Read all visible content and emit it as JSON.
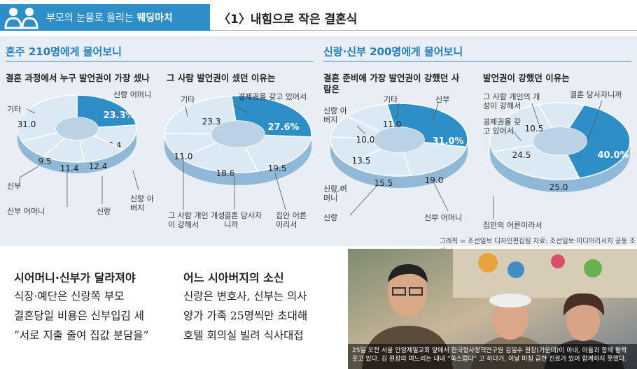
{
  "header": {
    "series": "부모의 눈물로 울리는",
    "series_bold": "웨딩마치",
    "title": "〈1〉내힘으로 작은 결혼식",
    "accent": "#2e8fc8"
  },
  "left_section": {
    "title": "혼주 210명에게 물어보니",
    "chart1": {
      "question": "결혼 과정에서 누구 발언권이 가장 셌나",
      "labels": [
        "신랑 어머니",
        "기타",
        "신부",
        "신부 어머니",
        "신랑",
        "신랑 아버지"
      ]
    },
    "chart2": {
      "question": "그 사람 발언권이 셌던 이유는",
      "labels": [
        "기타",
        "경제권을 갖고 있어서",
        "그 사람 개인 개성이 강해서",
        "결혼 당사자니까",
        "집안 어른 이리서"
      ]
    }
  },
  "right_section": {
    "title": "신랑·신부 200명에게 물어보니",
    "chart3": {
      "question": "결혼 준비에 가장 발언권이 강했던 사람은",
      "labels": [
        "기타",
        "신부",
        "신랑 아버지",
        "신부 어머니",
        "신랑",
        "신랑 어머니"
      ]
    },
    "chart4": {
      "question": "발언권이 강했던 이유는",
      "labels": [
        "그 사람 개인의 개성이 강해서",
        "결혼 당사자니까",
        "경제권을 갖고 있어서",
        "집안의 어른이라서"
      ]
    }
  },
  "credit": "그래픽 = 조선일보 디자인편집팀    자료: 조선일보·미디어리서치 공동 조사",
  "chart_data": [
    {
      "type": "pie",
      "title": "결혼 과정에서 누구 발언권이 가장 셌나",
      "categories": [
        "신랑 어머니",
        "신랑 아버지",
        "신랑",
        "신부 어머니",
        "신부",
        "기타"
      ],
      "values": [
        23.3,
        12.4,
        12.4,
        11.4,
        9.5,
        31.0
      ]
    },
    {
      "type": "pie",
      "title": "그 사람 발언권이 셌던 이유는",
      "categories": [
        "경제권을 갖고 있어서",
        "집안 어른 이리서",
        "결혼 당사자니까",
        "그 사람 개인 개성이 강해서",
        "기타"
      ],
      "values": [
        27.6,
        19.5,
        18.6,
        11.0,
        23.3
      ]
    },
    {
      "type": "pie",
      "title": "결혼 준비에 가장 발언권이 강했던 사람은",
      "categories": [
        "신부",
        "신부 어머니",
        "신랑 어머니",
        "신랑",
        "신랑 아버지",
        "기타"
      ],
      "values": [
        31.0,
        19.0,
        15.5,
        13.5,
        10.0,
        11.0
      ]
    },
    {
      "type": "pie",
      "title": "발언권이 강했던 이유는",
      "categories": [
        "결혼 당사자니까",
        "집안의 어른이라서",
        "경제권을 갖고 있어서",
        "그 사람 개인의 개성이 강해서"
      ],
      "values": [
        40.0,
        25.0,
        24.5,
        10.5
      ]
    }
  ],
  "article": {
    "col1_head": "시어머니·신부가 달라져야",
    "col1_lines": [
      "식장·예단은 신랑쪽 부모",
      "결혼당일 비용은 신부입김 세",
      "“서로 지출 줄여 집값 분담을”"
    ],
    "col2_head": "어느 시아버지의 소신",
    "col2_lines": [
      "신랑은 변호사, 신부는 의사",
      "양가 가족 25명씩만 초대해",
      "호텔 회의실 빌려 식사대접"
    ]
  },
  "photo_caption": "25일 오전 서울 안암제일교회 앞에서 한국형사정책연구원 김일수 원장(가운데)이 아내, 아들과 함께 활짝 웃고 있다. 김 원장의 며느리는 내내 “쑥스럽다” 고 하다가, 이날 마침 급한 진료가 있어 함께하지 못했다."
}
